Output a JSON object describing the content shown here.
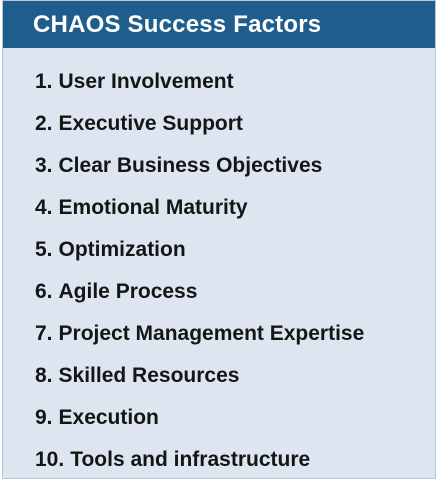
{
  "header": {
    "title": "CHAOS Success Factors"
  },
  "factors": [
    {
      "number": "1.",
      "label": "User Involvement"
    },
    {
      "number": "2.",
      "label": "Executive Support"
    },
    {
      "number": "3.",
      "label": "Clear Business Objectives"
    },
    {
      "number": "4.",
      "label": "Emotional Maturity"
    },
    {
      "number": "5.",
      "label": "Optimization"
    },
    {
      "number": "6.",
      "label": "Agile Process"
    },
    {
      "number": "7.",
      "label": "Project Management Expertise"
    },
    {
      "number": "8.",
      "label": "Skilled Resources"
    },
    {
      "number": "9.",
      "label": "Execution"
    },
    {
      "number": "10.",
      "label": "Tools and infrastructure"
    }
  ],
  "colors": {
    "header_background": "#1e5d8c",
    "header_text": "#ffffff",
    "panel_background": "#dde6f0",
    "item_text": "#151515"
  }
}
